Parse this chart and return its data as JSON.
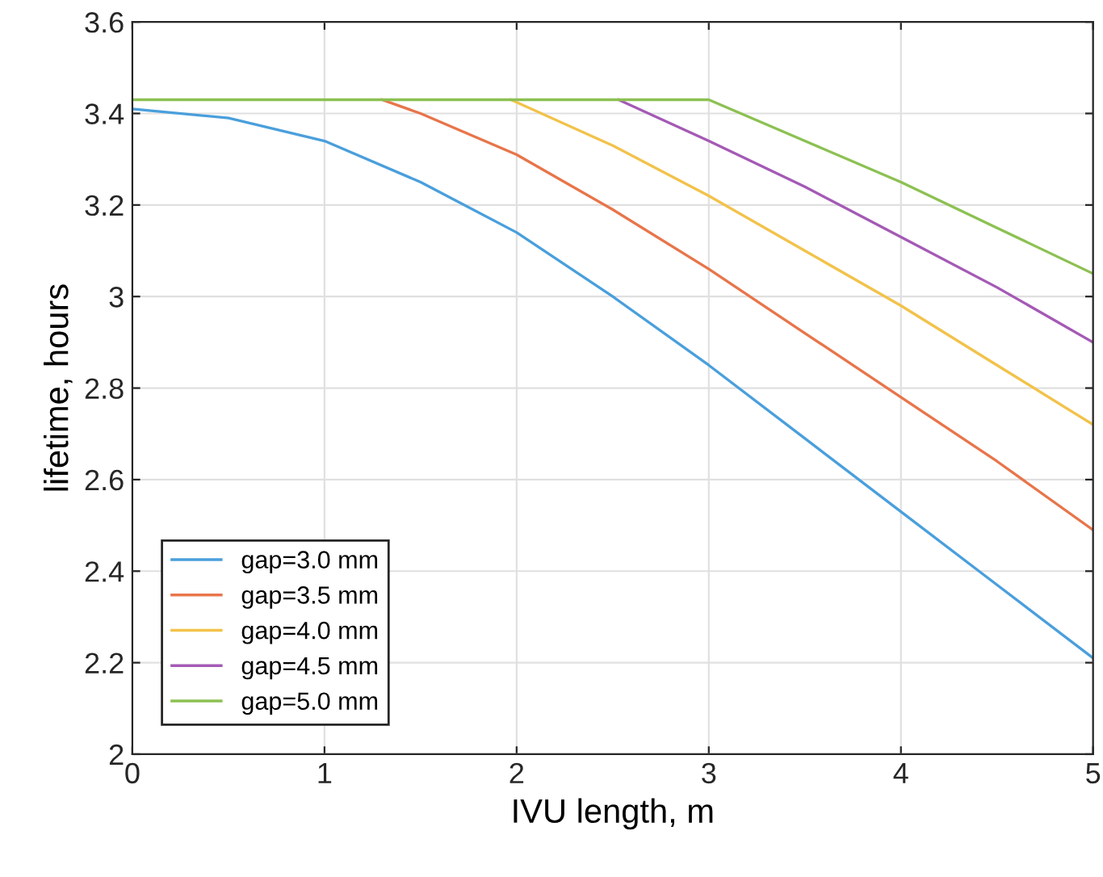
{
  "chart_data": {
    "type": "line",
    "xlabel": "IVU length, m",
    "ylabel": "lifetime, hours",
    "xlim": [
      0,
      5
    ],
    "xticks": [
      0,
      1,
      2,
      3,
      4,
      5
    ],
    "ylim": [
      2,
      3.6
    ],
    "yticks": [
      2,
      2.2,
      2.4,
      2.6,
      2.8,
      3,
      3.2,
      3.4,
      3.6
    ],
    "grid": true,
    "legend": "bottom left",
    "series": [
      {
        "name": "gap=3.0 mm",
        "color": "#4a9fdc",
        "x": [
          0,
          0.5,
          1,
          1.5,
          2,
          2.5,
          3,
          3.5,
          4,
          4.5,
          5
        ],
        "values": [
          3.41,
          3.39,
          3.34,
          3.25,
          3.14,
          3.0,
          2.85,
          2.69,
          2.53,
          2.37,
          2.21
        ]
      },
      {
        "name": "gap=3.5 mm",
        "color": "#e8754a",
        "x": [
          1.3,
          1.5,
          2,
          2.5,
          3,
          3.5,
          4,
          4.5,
          5
        ],
        "values": [
          3.43,
          3.4,
          3.31,
          3.19,
          3.06,
          2.92,
          2.78,
          2.64,
          2.49
        ]
      },
      {
        "name": "gap=4.0 mm",
        "color": "#f2c24a",
        "x": [
          1.97,
          2.5,
          3,
          3.5,
          4,
          4.5,
          5
        ],
        "values": [
          3.43,
          3.33,
          3.22,
          3.1,
          2.98,
          2.85,
          2.72
        ]
      },
      {
        "name": "gap=4.5 mm",
        "color": "#a45ab5",
        "x": [
          2.53,
          3,
          3.5,
          4,
          4.5,
          5
        ],
        "values": [
          3.43,
          3.34,
          3.24,
          3.13,
          3.02,
          2.9
        ]
      },
      {
        "name": "gap=5.0 mm",
        "color": "#8cc152",
        "x": [
          0,
          3,
          3.5,
          4,
          4.5,
          5
        ],
        "values": [
          3.43,
          3.43,
          3.34,
          3.25,
          3.15,
          3.05
        ]
      }
    ]
  }
}
